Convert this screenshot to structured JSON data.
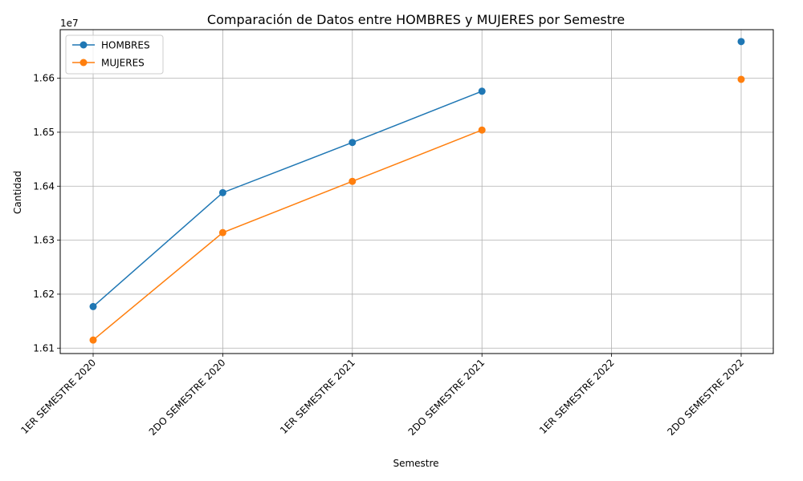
{
  "chart_data": {
    "type": "line",
    "title": "Comparación de Datos entre HOMBRES y MUJERES por Semestre",
    "xlabel": "Semestre",
    "ylabel": "Cantidad",
    "y_offset_label": "1e7",
    "categories": [
      "1ER SEMESTRE 2020",
      "2DO SEMESTRE 2020",
      "1ER SEMESTRE 2021",
      "2DO SEMESTRE 2021",
      "1ER SEMESTRE 2022",
      "2DO SEMESTRE 2022"
    ],
    "series": [
      {
        "name": "HOMBRES",
        "color": "#1f77b4",
        "values": [
          16177000,
          16388000,
          16481000,
          16576000,
          null,
          16668000
        ]
      },
      {
        "name": "MUJERES",
        "color": "#ff7f0e",
        "values": [
          16115000,
          16314000,
          16409000,
          16504000,
          null,
          16598000
        ]
      }
    ],
    "ylim": [
      16090000,
      16690000
    ],
    "yticks": [
      16100000,
      16200000,
      16300000,
      16400000,
      16500000,
      16600000
    ],
    "ytick_labels": [
      "1.61",
      "1.62",
      "1.63",
      "1.64",
      "1.65",
      "1.66"
    ],
    "grid": true,
    "legend_position": "top-left",
    "marker": "circle"
  }
}
